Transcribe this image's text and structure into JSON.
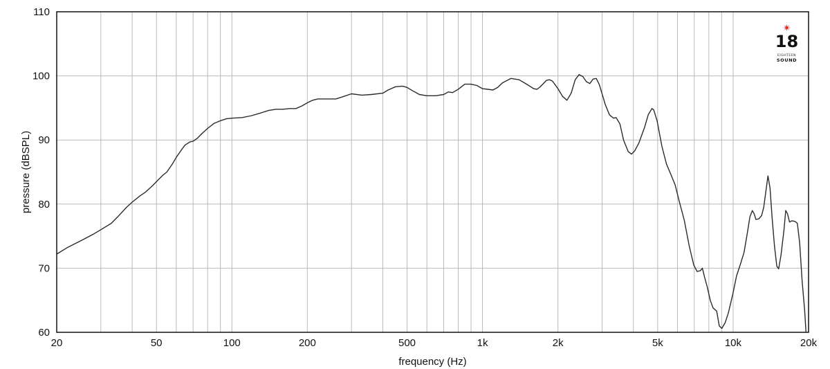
{
  "chart_data": {
    "type": "line",
    "title": "",
    "xlabel": "frequency (Hz)",
    "ylabel": "pressure (dBSPL)",
    "x_scale": "log",
    "xlim": [
      20,
      20000
    ],
    "ylim": [
      60,
      110
    ],
    "grid": true,
    "legend": "none",
    "x_ticks": [
      {
        "value": 20,
        "label": "20"
      },
      {
        "value": 50,
        "label": "50"
      },
      {
        "value": 100,
        "label": "100"
      },
      {
        "value": 200,
        "label": "200"
      },
      {
        "value": 500,
        "label": "500"
      },
      {
        "value": 1000,
        "label": "1k"
      },
      {
        "value": 2000,
        "label": "2k"
      },
      {
        "value": 5000,
        "label": "5k"
      },
      {
        "value": 10000,
        "label": "10k"
      },
      {
        "value": 20000,
        "label": "20k"
      }
    ],
    "x_minor_grid": [
      30,
      40,
      60,
      70,
      80,
      90,
      300,
      400,
      600,
      700,
      800,
      900,
      3000,
      4000,
      6000,
      7000,
      8000,
      9000
    ],
    "y_ticks": [
      {
        "value": 60,
        "label": "60"
      },
      {
        "value": 70,
        "label": "70"
      },
      {
        "value": 80,
        "label": "80"
      },
      {
        "value": 90,
        "label": "90"
      },
      {
        "value": 100,
        "label": "100"
      },
      {
        "value": 110,
        "label": "110"
      }
    ],
    "series": [
      {
        "color": "#2a2a2a",
        "points": [
          [
            20,
            72.2
          ],
          [
            22,
            73.2
          ],
          [
            25,
            74.3
          ],
          [
            28,
            75.3
          ],
          [
            30,
            76.0
          ],
          [
            33,
            77.0
          ],
          [
            35,
            78.0
          ],
          [
            38,
            79.5
          ],
          [
            40,
            80.3
          ],
          [
            43,
            81.3
          ],
          [
            45,
            81.8
          ],
          [
            48,
            82.8
          ],
          [
            50,
            83.5
          ],
          [
            53,
            84.5
          ],
          [
            55,
            85.0
          ],
          [
            58,
            86.3
          ],
          [
            60,
            87.3
          ],
          [
            63,
            88.5
          ],
          [
            65,
            89.2
          ],
          [
            68,
            89.7
          ],
          [
            70,
            89.8
          ],
          [
            73,
            90.3
          ],
          [
            75,
            90.8
          ],
          [
            80,
            91.8
          ],
          [
            85,
            92.6
          ],
          [
            90,
            93.0
          ],
          [
            95,
            93.3
          ],
          [
            100,
            93.4
          ],
          [
            110,
            93.5
          ],
          [
            120,
            93.8
          ],
          [
            130,
            94.2
          ],
          [
            140,
            94.6
          ],
          [
            150,
            94.8
          ],
          [
            160,
            94.8
          ],
          [
            170,
            94.9
          ],
          [
            180,
            94.9
          ],
          [
            190,
            95.3
          ],
          [
            200,
            95.8
          ],
          [
            210,
            96.2
          ],
          [
            220,
            96.4
          ],
          [
            240,
            96.4
          ],
          [
            260,
            96.4
          ],
          [
            280,
            96.8
          ],
          [
            300,
            97.2
          ],
          [
            330,
            97.0
          ],
          [
            360,
            97.1
          ],
          [
            400,
            97.3
          ],
          [
            420,
            97.8
          ],
          [
            450,
            98.3
          ],
          [
            480,
            98.4
          ],
          [
            500,
            98.2
          ],
          [
            530,
            97.6
          ],
          [
            560,
            97.1
          ],
          [
            600,
            96.9
          ],
          [
            650,
            96.9
          ],
          [
            700,
            97.1
          ],
          [
            730,
            97.5
          ],
          [
            760,
            97.4
          ],
          [
            800,
            97.9
          ],
          [
            850,
            98.7
          ],
          [
            900,
            98.7
          ],
          [
            950,
            98.5
          ],
          [
            1000,
            98.0
          ],
          [
            1050,
            97.9
          ],
          [
            1100,
            97.8
          ],
          [
            1150,
            98.2
          ],
          [
            1200,
            98.9
          ],
          [
            1300,
            99.6
          ],
          [
            1400,
            99.4
          ],
          [
            1500,
            98.7
          ],
          [
            1600,
            98.0
          ],
          [
            1650,
            97.9
          ],
          [
            1700,
            98.3
          ],
          [
            1800,
            99.3
          ],
          [
            1850,
            99.4
          ],
          [
            1900,
            99.2
          ],
          [
            2000,
            98.0
          ],
          [
            2100,
            96.8
          ],
          [
            2200,
            96.2
          ],
          [
            2300,
            97.3
          ],
          [
            2400,
            99.4
          ],
          [
            2500,
            100.2
          ],
          [
            2600,
            99.9
          ],
          [
            2700,
            99.1
          ],
          [
            2800,
            98.8
          ],
          [
            2900,
            99.5
          ],
          [
            3000,
            99.6
          ],
          [
            3100,
            98.6
          ],
          [
            3300,
            95.5
          ],
          [
            3450,
            93.9
          ],
          [
            3600,
            93.4
          ],
          [
            3700,
            93.5
          ],
          [
            3850,
            92.5
          ],
          [
            4000,
            90.0
          ],
          [
            4200,
            88.2
          ],
          [
            4350,
            87.8
          ],
          [
            4500,
            88.3
          ],
          [
            4700,
            89.5
          ],
          [
            5000,
            92.0
          ],
          [
            5200,
            94.0
          ],
          [
            5400,
            94.9
          ],
          [
            5500,
            94.7
          ],
          [
            5700,
            93.0
          ],
          [
            6000,
            89.0
          ],
          [
            6300,
            86.2
          ],
          [
            6600,
            84.6
          ],
          [
            6900,
            83.0
          ],
          [
            7200,
            80.5
          ],
          [
            7600,
            77.5
          ],
          [
            8000,
            73.5
          ],
          [
            8400,
            70.5
          ],
          [
            8700,
            69.5
          ],
          [
            9000,
            69.6
          ],
          [
            9200,
            70.0
          ],
          [
            9400,
            68.7
          ],
          [
            9700,
            67.0
          ],
          [
            10000,
            65.0
          ],
          [
            10300,
            63.8
          ],
          [
            10700,
            63.3
          ],
          [
            11000,
            61.0
          ],
          [
            11300,
            60.6
          ],
          [
            11700,
            61.5
          ],
          [
            12100,
            63.0
          ],
          [
            12700,
            66.0
          ],
          [
            13200,
            68.8
          ],
          [
            13800,
            70.8
          ],
          [
            14300,
            72.5
          ],
          [
            14800,
            75.5
          ],
          [
            15200,
            78.0
          ],
          [
            15600,
            79.0
          ],
          [
            15900,
            78.5
          ],
          [
            16200,
            77.6
          ],
          [
            16700,
            77.7
          ],
          [
            17200,
            78.2
          ],
          [
            17600,
            79.5
          ],
          [
            18000,
            82.0
          ],
          [
            18400,
            84.4
          ],
          [
            18800,
            82.5
          ],
          [
            19200,
            78.0
          ],
          [
            19700,
            73.5
          ],
          [
            20200,
            70.3
          ],
          [
            20600,
            69.9
          ],
          [
            21100,
            72.0
          ],
          [
            21800,
            76.0
          ],
          [
            22200,
            79.0
          ],
          [
            22600,
            78.5
          ],
          [
            23100,
            77.2
          ],
          [
            23700,
            77.4
          ],
          [
            24500,
            77.3
          ],
          [
            25100,
            77.0
          ],
          [
            25700,
            74.0
          ],
          [
            26400,
            68.0
          ],
          [
            27100,
            63.5
          ],
          [
            27500,
            60.0
          ]
        ]
      }
    ]
  },
  "logo": {
    "number": "18",
    "line1": "EIGHTEEN",
    "line2": "SOUND",
    "accent_color": "#e2231a"
  }
}
